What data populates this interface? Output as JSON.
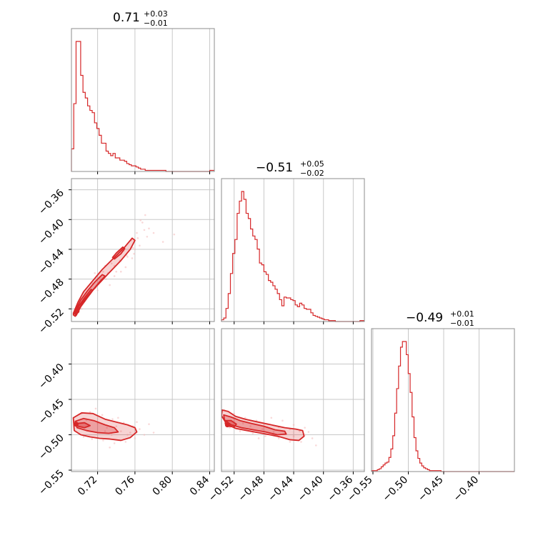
{
  "colors": {
    "series": "#d62728",
    "fill": "#f4b9ba",
    "grid": "#c8c8c8",
    "frame": "#8c8c8c"
  },
  "chart_data": {
    "type": "corner",
    "parameters": [
      "p0",
      "p1",
      "p2"
    ],
    "titles": [
      {
        "median": "0.71",
        "plus": "+0.03",
        "minus": "−0.01"
      },
      {
        "median": "−0.51",
        "plus": "+0.05",
        "minus": "−0.02"
      },
      {
        "median": "−0.49",
        "plus": "+0.01",
        "minus": "−0.01"
      }
    ],
    "axes": {
      "p0": {
        "range": [
          0.692,
          0.845
        ],
        "ticks": [
          0.72,
          0.76,
          0.8,
          0.84
        ],
        "tick_labels": [
          "0.72",
          "0.76",
          "0.80",
          "0.84"
        ]
      },
      "p1": {
        "range": [
          -0.537,
          -0.345
        ],
        "ticks": [
          -0.52,
          -0.48,
          -0.44,
          -0.4,
          -0.36
        ],
        "tick_labels": [
          "−0.52",
          "−0.48",
          "−0.44",
          "−0.40",
          "−0.36"
        ]
      },
      "p2": {
        "range": [
          -0.552,
          -0.35
        ],
        "ticks": [
          -0.55,
          -0.5,
          -0.45,
          -0.4
        ],
        "tick_labels": [
          "−0.55",
          "−0.50",
          "−0.45",
          "−0.40"
        ]
      }
    },
    "histograms": [
      {
        "param": "p0",
        "edges": [
          0.692,
          0.845
        ],
        "counts": [
          20,
          60,
          115,
          115,
          85,
          70,
          65,
          58,
          54,
          52,
          43,
          38,
          32,
          25,
          25,
          18,
          16,
          14,
          16,
          12,
          12,
          10,
          10,
          9,
          7,
          6,
          5,
          5,
          4,
          3,
          2,
          2,
          1,
          1,
          1,
          1,
          1,
          1,
          1,
          1,
          1,
          0,
          0,
          0,
          0,
          0,
          0,
          0,
          0,
          0,
          0,
          0,
          0,
          0,
          0,
          0,
          0,
          0,
          0,
          0,
          1,
          1
        ]
      },
      {
        "param": "p1",
        "edges": [
          -0.537,
          -0.345
        ],
        "counts": [
          2,
          4,
          15,
          32,
          55,
          78,
          94,
          124,
          138,
          149,
          140,
          124,
          118,
          106,
          98,
          94,
          83,
          67,
          65,
          57,
          54,
          47,
          45,
          41,
          37,
          32,
          25,
          18,
          28,
          27,
          27,
          25,
          24,
          19,
          17,
          21,
          19,
          15,
          14,
          14,
          10,
          7,
          6,
          5,
          4,
          3,
          2,
          2,
          1,
          1,
          1,
          0,
          0,
          0,
          0,
          0,
          0,
          0,
          0,
          0,
          0,
          0,
          1,
          1
        ]
      },
      {
        "param": "p2",
        "edges": [
          -0.552,
          -0.35
        ],
        "counts": [
          1,
          1,
          1,
          2,
          3,
          5,
          7,
          9,
          10,
          15,
          24,
          38,
          62,
          88,
          112,
          132,
          138,
          138,
          124,
          104,
          84,
          58,
          36,
          22,
          14,
          9,
          6,
          4,
          3,
          2,
          1,
          1,
          1,
          1,
          1,
          1,
          0,
          0,
          0,
          0,
          0,
          0,
          0,
          0,
          0,
          0,
          0,
          0,
          0,
          0,
          0,
          0,
          0,
          0,
          0,
          0,
          0,
          0,
          0,
          0,
          0,
          0,
          0,
          0,
          0,
          0,
          0,
          0,
          0,
          0,
          0,
          0,
          0,
          0
        ]
      }
    ],
    "scatter_panels": [
      {
        "x": "p0",
        "y": "p1",
        "mode": [
          0.698,
          -0.523
        ],
        "contours": [
          [
            [
              0.695,
              -0.527
            ],
            [
              0.7,
              -0.516
            ],
            [
              0.71,
              -0.502
            ],
            [
              0.72,
              -0.488
            ],
            [
              0.732,
              -0.472
            ],
            [
              0.745,
              -0.455
            ],
            [
              0.755,
              -0.44
            ],
            [
              0.76,
              -0.428
            ],
            [
              0.757,
              -0.425
            ],
            [
              0.749,
              -0.437
            ],
            [
              0.737,
              -0.452
            ],
            [
              0.725,
              -0.467
            ],
            [
              0.715,
              -0.482
            ],
            [
              0.705,
              -0.497
            ],
            [
              0.699,
              -0.511
            ],
            [
              0.694,
              -0.526
            ]
          ],
          [
            [
              0.696,
              -0.53
            ],
            [
              0.7,
              -0.52
            ],
            [
              0.706,
              -0.508
            ],
            [
              0.714,
              -0.496
            ],
            [
              0.722,
              -0.484
            ],
            [
              0.728,
              -0.476
            ],
            [
              0.725,
              -0.474
            ],
            [
              0.717,
              -0.484
            ],
            [
              0.709,
              -0.496
            ],
            [
              0.702,
              -0.508
            ],
            [
              0.697,
              -0.52
            ],
            [
              0.694,
              -0.528
            ]
          ],
          [
            [
              0.697,
              -0.529
            ],
            [
              0.702,
              -0.517
            ],
            [
              0.709,
              -0.505
            ],
            [
              0.715,
              -0.495
            ],
            [
              0.713,
              -0.494
            ],
            [
              0.706,
              -0.505
            ],
            [
              0.7,
              -0.516
            ],
            [
              0.696,
              -0.527
            ]
          ],
          [
            [
              0.738,
              -0.453
            ],
            [
              0.745,
              -0.446
            ],
            [
              0.749,
              -0.439
            ],
            [
              0.747,
              -0.437
            ],
            [
              0.74,
              -0.445
            ],
            [
              0.736,
              -0.451
            ]
          ]
        ],
        "points": [
          [
            0.712,
            -0.5
          ],
          [
            0.718,
            -0.492
          ],
          [
            0.724,
            -0.481
          ],
          [
            0.731,
            -0.472
          ],
          [
            0.738,
            -0.462
          ],
          [
            0.744,
            -0.455
          ],
          [
            0.751,
            -0.448
          ],
          [
            0.758,
            -0.438
          ],
          [
            0.763,
            -0.425
          ],
          [
            0.77,
            -0.414
          ],
          [
            0.76,
            -0.44
          ],
          [
            0.752,
            -0.45
          ],
          [
            0.74,
            -0.47
          ],
          [
            0.729,
            -0.48
          ],
          [
            0.72,
            -0.495
          ],
          [
            0.706,
            -0.51
          ],
          [
            0.7,
            -0.518
          ],
          [
            0.775,
            -0.412
          ],
          [
            0.768,
            -0.404
          ],
          [
            0.771,
            -0.394
          ],
          [
            0.78,
            -0.418
          ],
          [
            0.79,
            -0.43
          ],
          [
            0.733,
            -0.488
          ],
          [
            0.745,
            -0.47
          ],
          [
            0.757,
            -0.452
          ],
          [
            0.765,
            -0.435
          ],
          [
            0.748,
            -0.442
          ],
          [
            0.735,
            -0.459
          ],
          [
            0.726,
            -0.47
          ],
          [
            0.714,
            -0.485
          ],
          [
            0.705,
            -0.498
          ],
          [
            0.762,
            -0.418
          ],
          [
            0.756,
            -0.428
          ],
          [
            0.742,
            -0.448
          ],
          [
            0.723,
            -0.477
          ],
          [
            0.709,
            -0.503
          ],
          [
            0.703,
            -0.52
          ],
          [
            0.773,
            -0.423
          ],
          [
            0.766,
            -0.401
          ],
          [
            0.802,
            -0.42
          ],
          [
            0.75,
            -0.464
          ],
          [
            0.738,
            -0.476
          ],
          [
            0.759,
            -0.446
          ],
          [
            0.728,
            -0.462
          ],
          [
            0.717,
            -0.472
          ]
        ]
      },
      {
        "x": "p0",
        "y": "p2",
        "mode": [
          0.697,
          -0.485
        ],
        "contours": [
          [
            [
              0.694,
              -0.476
            ],
            [
              0.703,
              -0.469
            ],
            [
              0.715,
              -0.47
            ],
            [
              0.728,
              -0.478
            ],
            [
              0.74,
              -0.482
            ],
            [
              0.752,
              -0.486
            ],
            [
              0.76,
              -0.49
            ],
            [
              0.762,
              -0.496
            ],
            [
              0.755,
              -0.504
            ],
            [
              0.745,
              -0.508
            ],
            [
              0.733,
              -0.506
            ],
            [
              0.722,
              -0.505
            ],
            [
              0.712,
              -0.503
            ],
            [
              0.702,
              -0.5
            ],
            [
              0.695,
              -0.494
            ]
          ],
          [
            [
              0.696,
              -0.481
            ],
            [
              0.705,
              -0.477
            ],
            [
              0.716,
              -0.48
            ],
            [
              0.728,
              -0.486
            ],
            [
              0.738,
              -0.49
            ],
            [
              0.742,
              -0.496
            ],
            [
              0.732,
              -0.498
            ],
            [
              0.72,
              -0.497
            ],
            [
              0.708,
              -0.494
            ],
            [
              0.698,
              -0.49
            ]
          ],
          [
            [
              0.698,
              -0.484
            ],
            [
              0.706,
              -0.483
            ],
            [
              0.712,
              -0.487
            ],
            [
              0.706,
              -0.49
            ],
            [
              0.699,
              -0.488
            ]
          ]
        ],
        "points": [
          [
            0.703,
            -0.47
          ],
          [
            0.712,
            -0.468
          ],
          [
            0.725,
            -0.472
          ],
          [
            0.736,
            -0.478
          ],
          [
            0.748,
            -0.483
          ],
          [
            0.758,
            -0.488
          ],
          [
            0.765,
            -0.492
          ],
          [
            0.77,
            -0.5
          ],
          [
            0.76,
            -0.505
          ],
          [
            0.75,
            -0.51
          ],
          [
            0.738,
            -0.512
          ],
          [
            0.726,
            -0.508
          ],
          [
            0.714,
            -0.506
          ],
          [
            0.705,
            -0.503
          ],
          [
            0.73,
            -0.49
          ],
          [
            0.745,
            -0.495
          ],
          [
            0.755,
            -0.497
          ],
          [
            0.72,
            -0.484
          ],
          [
            0.71,
            -0.488
          ],
          [
            0.775,
            -0.485
          ],
          [
            0.78,
            -0.497
          ],
          [
            0.733,
            -0.518
          ],
          [
            0.742,
            -0.476
          ],
          [
            0.718,
            -0.463
          ],
          [
            0.752,
            -0.5
          ],
          [
            0.762,
            -0.482
          ],
          [
            0.735,
            -0.5
          ],
          [
            0.74,
            -0.488
          ],
          [
            0.708,
            -0.479
          ],
          [
            0.728,
            -0.495
          ]
        ]
      },
      {
        "x": "p1",
        "y": "p2",
        "mode": [
          -0.529,
          -0.486
        ],
        "contours": [
          [
            [
              -0.536,
              -0.465
            ],
            [
              -0.528,
              -0.467
            ],
            [
              -0.518,
              -0.474
            ],
            [
              -0.505,
              -0.478
            ],
            [
              -0.488,
              -0.482
            ],
            [
              -0.47,
              -0.486
            ],
            [
              -0.452,
              -0.49
            ],
            [
              -0.437,
              -0.492
            ],
            [
              -0.428,
              -0.494
            ],
            [
              -0.426,
              -0.502
            ],
            [
              -0.433,
              -0.508
            ],
            [
              -0.445,
              -0.507
            ],
            [
              -0.458,
              -0.503
            ],
            [
              -0.472,
              -0.5
            ],
            [
              -0.488,
              -0.497
            ],
            [
              -0.503,
              -0.494
            ],
            [
              -0.518,
              -0.491
            ],
            [
              -0.53,
              -0.485
            ],
            [
              -0.537,
              -0.473
            ]
          ],
          [
            [
              -0.534,
              -0.472
            ],
            [
              -0.524,
              -0.475
            ],
            [
              -0.512,
              -0.48
            ],
            [
              -0.497,
              -0.484
            ],
            [
              -0.48,
              -0.488
            ],
            [
              -0.465,
              -0.493
            ],
            [
              -0.452,
              -0.495
            ],
            [
              -0.45,
              -0.499
            ],
            [
              -0.462,
              -0.5
            ],
            [
              -0.478,
              -0.496
            ],
            [
              -0.494,
              -0.493
            ],
            [
              -0.51,
              -0.49
            ],
            [
              -0.524,
              -0.486
            ],
            [
              -0.533,
              -0.479
            ]
          ],
          [
            [
              -0.531,
              -0.48
            ],
            [
              -0.524,
              -0.48
            ],
            [
              -0.517,
              -0.485
            ],
            [
              -0.52,
              -0.489
            ],
            [
              -0.527,
              -0.488
            ],
            [
              -0.532,
              -0.484
            ]
          ]
        ],
        "points": [
          [
            -0.533,
            -0.465
          ],
          [
            -0.52,
            -0.47
          ],
          [
            -0.505,
            -0.476
          ],
          [
            -0.49,
            -0.48
          ],
          [
            -0.475,
            -0.485
          ],
          [
            -0.46,
            -0.489
          ],
          [
            -0.445,
            -0.492
          ],
          [
            -0.432,
            -0.495
          ],
          [
            -0.425,
            -0.5
          ],
          [
            -0.43,
            -0.51
          ],
          [
            -0.445,
            -0.51
          ],
          [
            -0.46,
            -0.505
          ],
          [
            -0.478,
            -0.502
          ],
          [
            -0.495,
            -0.498
          ],
          [
            -0.512,
            -0.495
          ],
          [
            -0.526,
            -0.49
          ],
          [
            -0.498,
            -0.488
          ],
          [
            -0.482,
            -0.492
          ],
          [
            -0.467,
            -0.496
          ],
          [
            -0.452,
            -0.499
          ],
          [
            -0.44,
            -0.502
          ],
          [
            -0.42,
            -0.496
          ],
          [
            -0.415,
            -0.505
          ],
          [
            -0.41,
            -0.515
          ],
          [
            -0.47,
            -0.476
          ],
          [
            -0.455,
            -0.48
          ],
          [
            -0.508,
            -0.484
          ],
          [
            -0.44,
            -0.486
          ],
          [
            -0.425,
            -0.49
          ],
          [
            -0.487,
            -0.505
          ]
        ]
      }
    ]
  }
}
